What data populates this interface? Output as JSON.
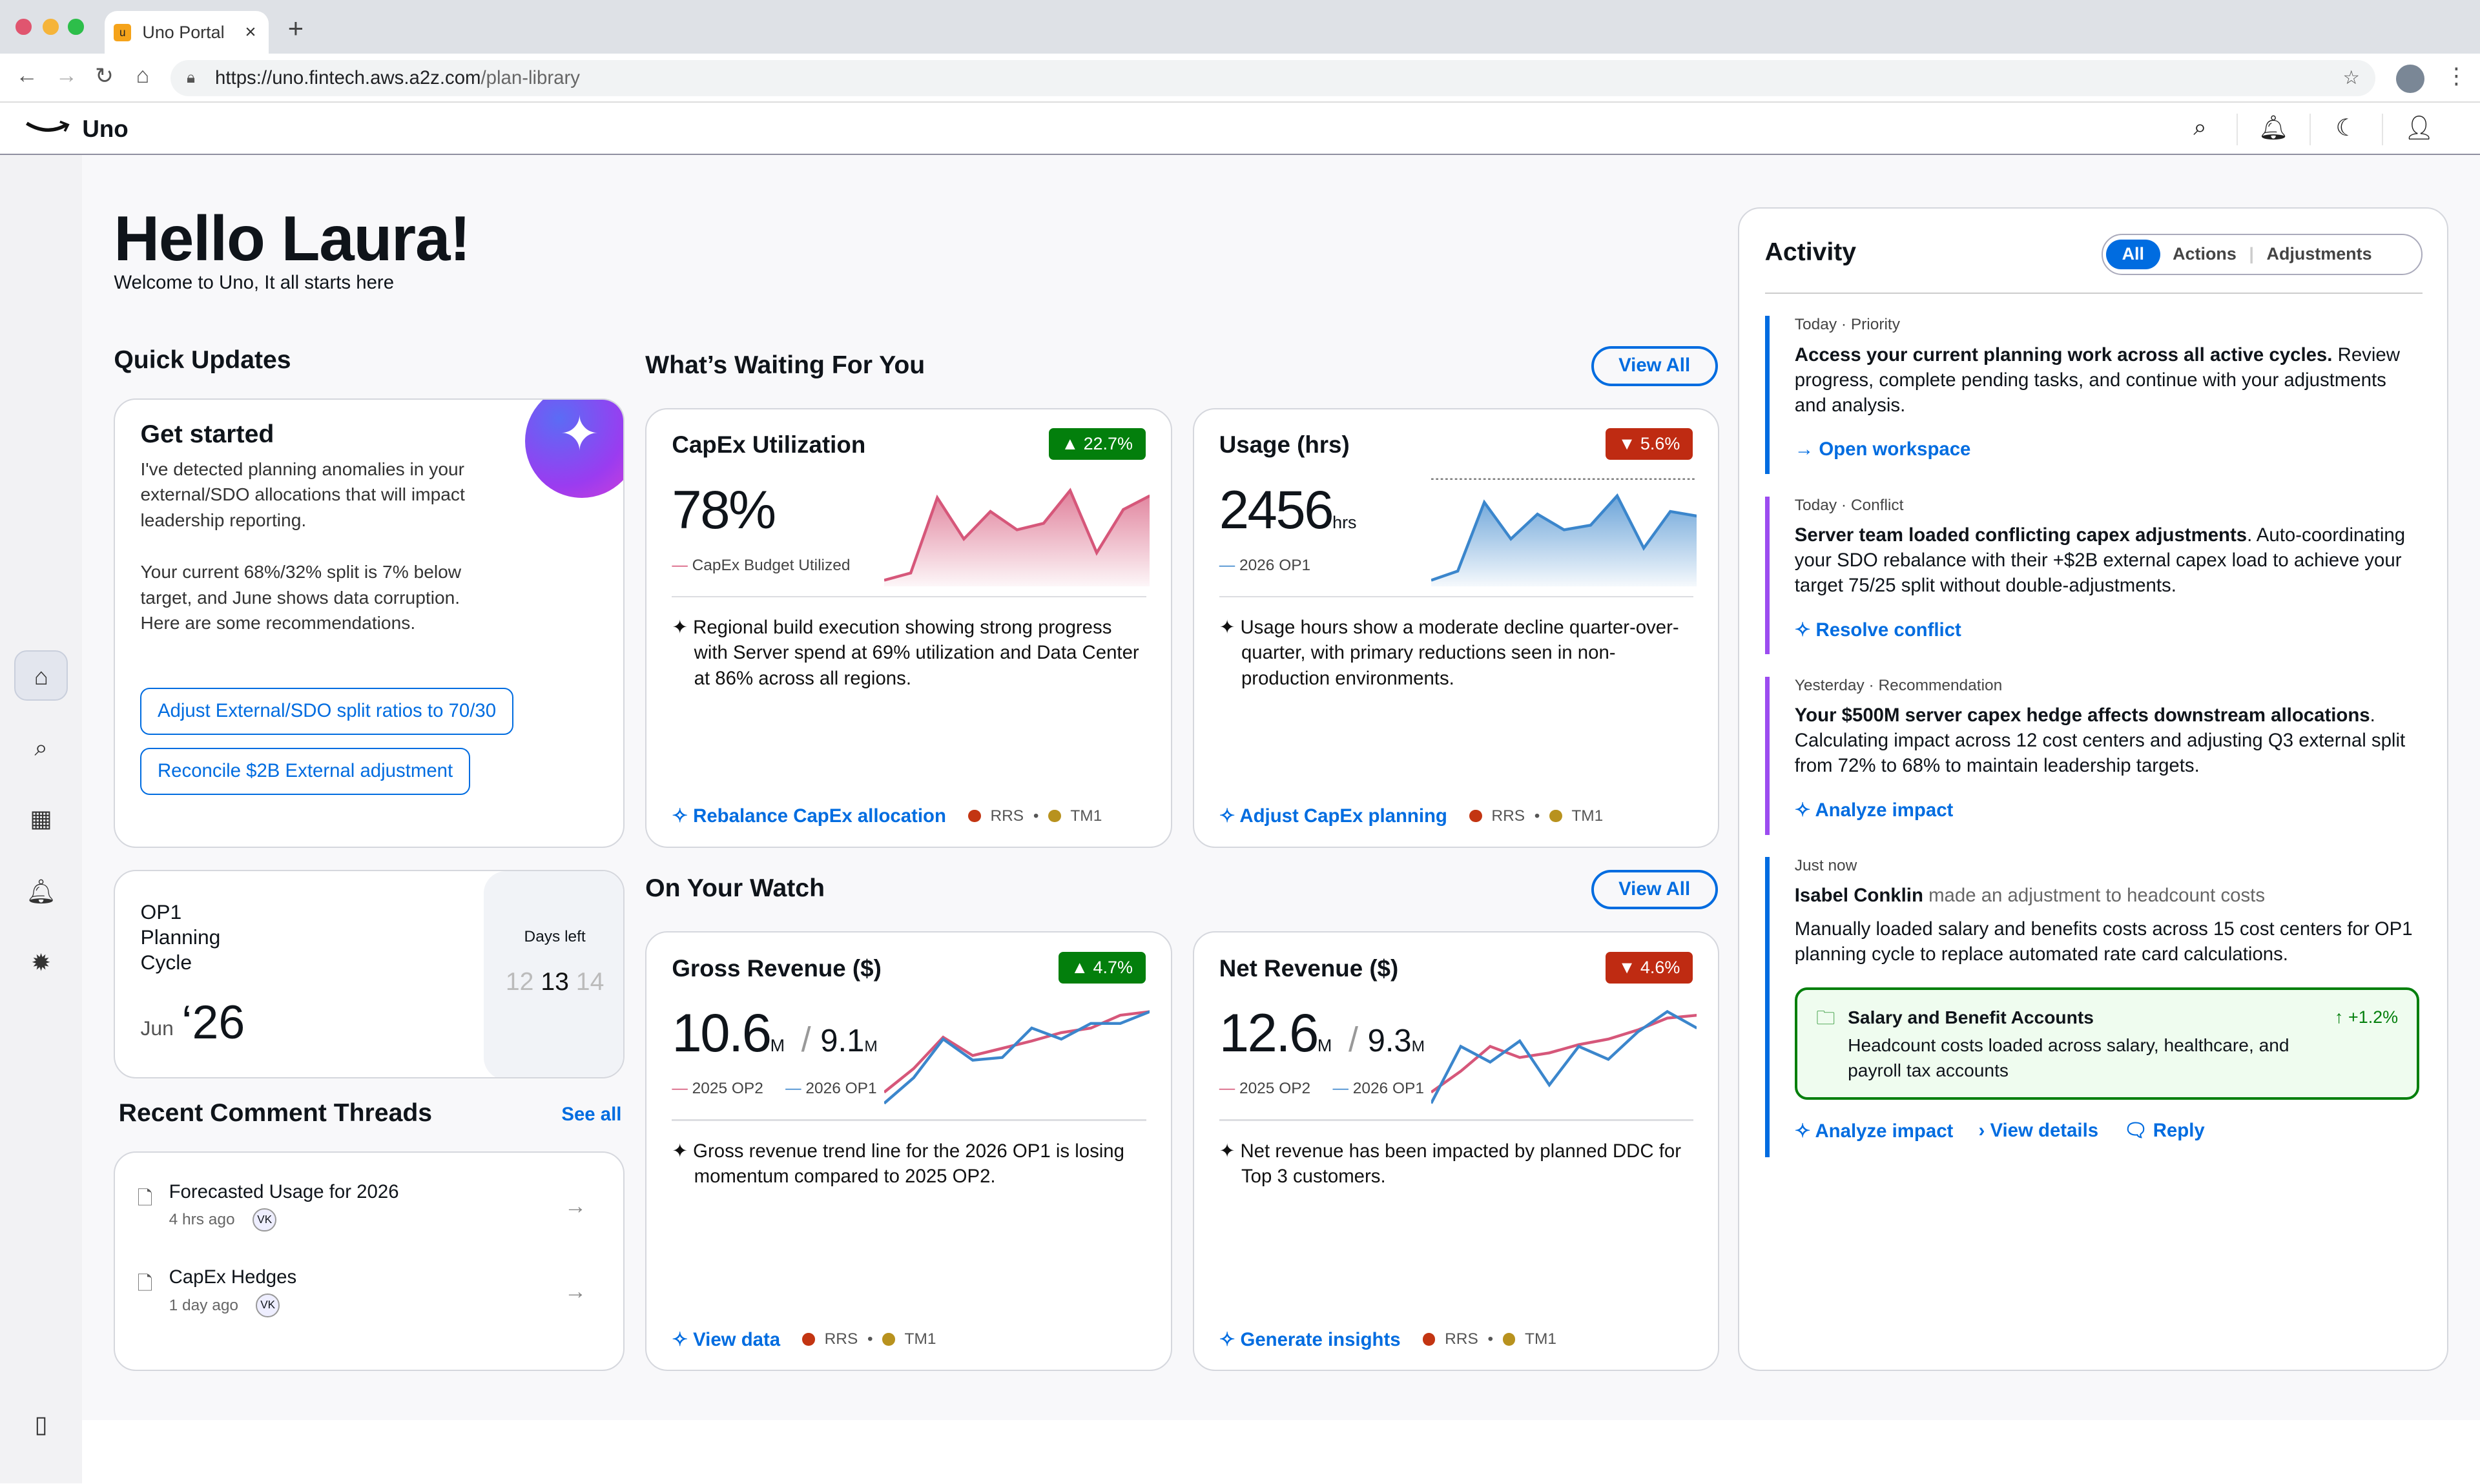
{
  "browser": {
    "tab_title": "Uno Portal",
    "tab_close": "×",
    "new_tab": "+",
    "favicon_letter": "u",
    "url_host": "https://uno.fintech.aws.a2z.com",
    "url_path": "/plan-library"
  },
  "app": {
    "name": "Uno"
  },
  "greeting": {
    "title": "Hello Laura!",
    "subtitle": "Welcome to Uno, It all starts here"
  },
  "quick_updates": {
    "heading": "Quick Updates",
    "get_started": {
      "title": "Get started",
      "body1": "I've detected planning anomalies in your external/SDO allocations that will impact leadership reporting.",
      "body2": "Your current 68%/32% split is 7% below target, and June shows data corruption. Here are some recommendations.",
      "action1": "Adjust External/SDO split ratios to 70/30",
      "action2": "Reconcile $2B External adjustment"
    },
    "cycle": {
      "line1": "OP1",
      "line2": "Planning",
      "line3": "Cycle",
      "month": "Jun",
      "year": "‘26",
      "days_left_label": "Days left",
      "prev": "12",
      "current": "13",
      "next": "14"
    }
  },
  "comments": {
    "heading": "Recent Comment Threads",
    "see_all": "See all",
    "items": [
      {
        "title": "Forecasted Usage for 2026",
        "time": "4 hrs ago",
        "avatar": "VK",
        "icon": "code-file-icon"
      },
      {
        "title": "CapEx Hedges",
        "time": "1 day ago",
        "avatar": "VK",
        "icon": "chart-file-icon"
      }
    ]
  },
  "waiting": {
    "heading": "What’s Waiting For You",
    "view_all": "View All"
  },
  "watch": {
    "heading": "On Your Watch",
    "view_all": "View All"
  },
  "metric_cards": [
    {
      "title": "CapEx Utilization",
      "badge": "22.7%",
      "trend": "up",
      "value": "78%",
      "unit": "",
      "legend": [
        "CapEx Budget Utilized"
      ],
      "insight": "Regional build execution showing strong progress with Server spend at 69% utilization and Data Center at 86% across all regions.",
      "action": "Rebalance CapEx allocation",
      "tags": [
        "RRS",
        "TM1"
      ]
    },
    {
      "title": "Usage (hrs)",
      "badge": "5.6%",
      "trend": "down",
      "value": "2456",
      "unit": "hrs",
      "legend": [
        "2026 OP1"
      ],
      "insight": "Usage hours show a moderate decline quarter-over-quarter, with primary reductions seen in non-production environments.",
      "action": "Adjust CapEx planning",
      "tags": [
        "RRS",
        "TM1"
      ]
    },
    {
      "title": "Gross Revenue ($)",
      "badge": "4.7%",
      "trend": "up",
      "value": "10.6",
      "unit": "M",
      "value2": "9.1",
      "unit2": "M",
      "legend": [
        "2025 OP2",
        "2026 OP1"
      ],
      "insight": "Gross revenue trend line for the 2026 OP1 is losing momentum compared to 2025 OP2.",
      "action": "View data",
      "tags": [
        "RRS",
        "TM1"
      ]
    },
    {
      "title": "Net Revenue ($)",
      "badge": "4.6%",
      "trend": "down",
      "value": "12.6",
      "unit": "M",
      "value2": "9.3",
      "unit2": "M",
      "legend": [
        "2025 OP2",
        "2026 OP1"
      ],
      "insight": "Net revenue has been impacted by planned DDC for Top 3 customers.",
      "action": "Generate insights",
      "tags": [
        "RRS",
        "TM1"
      ]
    }
  ],
  "sparklines": [
    {
      "type": "area",
      "color": "#d6577a",
      "series": [
        [
          0,
          8,
          90,
          45,
          75,
          55,
          62,
          98,
          30,
          77,
          92
        ]
      ]
    },
    {
      "type": "area",
      "color": "#3b86cc",
      "series": [
        [
          0,
          10,
          85,
          45,
          72,
          55,
          60,
          92,
          35,
          75,
          70
        ]
      ]
    },
    {
      "type": "line",
      "series": [
        [
          12,
          38,
          72,
          52,
          60,
          68,
          77,
          82,
          96,
          100
        ],
        [
          0,
          28,
          70,
          47,
          50,
          82,
          70,
          87,
          87,
          100
        ]
      ]
    },
    {
      "type": "line",
      "series": [
        [
          12,
          35,
          62,
          50,
          55,
          64,
          70,
          80,
          93,
          96
        ],
        [
          0,
          62,
          45,
          68,
          20,
          62,
          48,
          78,
          100,
          82
        ]
      ]
    }
  ],
  "colors": {
    "accent": "#006ce0",
    "up": "#037f0c",
    "down": "#bf2b12",
    "rrs": "#c33512",
    "tm1": "#b8921e",
    "op2": "#d6577a",
    "op1": "#3b86cc"
  },
  "activity": {
    "title": "Activity",
    "tabs": [
      "All",
      "Actions",
      "Adjustments"
    ],
    "items": [
      {
        "when": "Today",
        "kind": "Priority",
        "bold": "Access your current planning work across all active cycles.",
        "text": " Review progress, complete pending tasks, and continue with your adjustments and analysis.",
        "link": "Open workspace",
        "color": "#006ce0"
      },
      {
        "when": "Today",
        "kind": "Conflict",
        "bold": "Server team loaded conflicting capex adjustments",
        "text": ". Auto-coordinating your SDO rebalance with their +$2B external capex load to achieve your target 75/25 split without double-adjustments.",
        "link": "Resolve conflict",
        "color": "#9c4cf0"
      },
      {
        "when": "Yesterday",
        "kind": "Recommendation",
        "bold": "Your $500M server capex hedge affects downstream allocations",
        "text": ". Calculating impact across 12 cost centers and adjusting Q3 external split from 72% to 68% to maintain leadership targets.",
        "link": "Analyze impact",
        "color": "#9c4cf0"
      }
    ],
    "latest": {
      "when": "Just now",
      "person": "Isabel Conklin",
      "action": " made an adjustment to headcount costs",
      "text": "Manually loaded salary and benefits costs across 15 cost centers for OP1 planning cycle to replace automated rate card calculations.",
      "box_title": "Salary and Benefit Accounts",
      "box_text": "Headcount costs loaded across salary, healthcare, and payroll tax accounts",
      "box_change": "+1.2%",
      "links": [
        "Analyze impact",
        "View details",
        "Reply"
      ]
    }
  }
}
